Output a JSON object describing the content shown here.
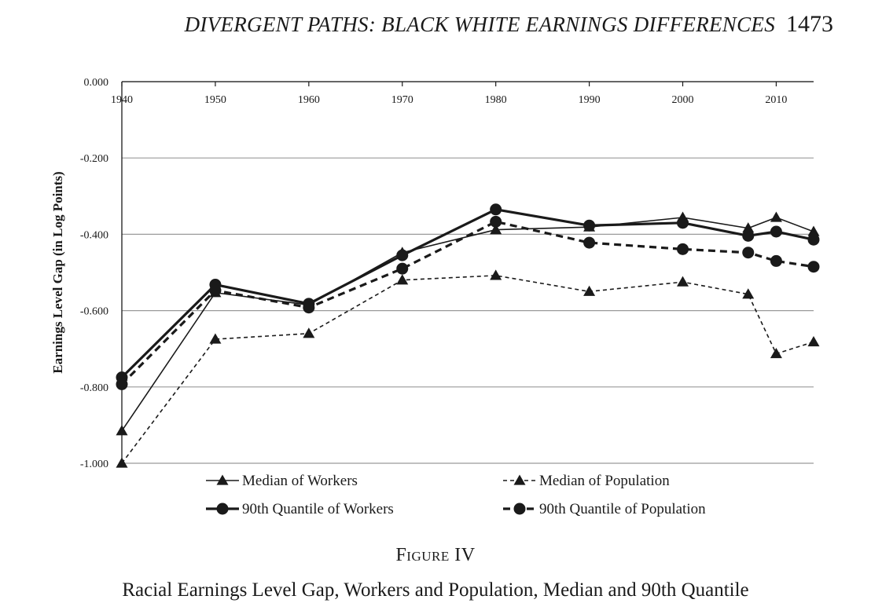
{
  "header": {
    "running_title": "DIVERGENT PATHS: BLACK WHITE EARNINGS DIFFERENCES",
    "page_number": "1473"
  },
  "figure": {
    "label": "Figure IV",
    "caption": "Racial Earnings Level Gap, Workers and Population, Median and 90th Quantile"
  },
  "colors": {
    "ink": "#1a1a1a",
    "grid": "#9a9a9a"
  },
  "chart_data": {
    "type": "line",
    "title": "",
    "xlabel": "",
    "ylabel": "Earnings Level Gap (in Log Points)",
    "x": [
      1940,
      1950,
      1960,
      1970,
      1980,
      1990,
      2000,
      2007,
      2010,
      2014
    ],
    "x_ticks": [
      "1940",
      "1950",
      "1960",
      "1970",
      "1980",
      "1990",
      "2000",
      "2010"
    ],
    "x_tick_values": [
      1940,
      1950,
      1960,
      1970,
      1980,
      1990,
      2000,
      2010
    ],
    "xlim": [
      1940,
      2014
    ],
    "ylim": [
      -1.0,
      0.0
    ],
    "y_ticks": [
      "0.000",
      "-0.200",
      "-0.400",
      "-0.600",
      "-0.800",
      "-1.000"
    ],
    "y_tick_values": [
      0.0,
      -0.2,
      -0.4,
      -0.6,
      -0.8,
      -1.0
    ],
    "grid": "horizontal",
    "x_axis_position": "top",
    "legend_position": "bottom",
    "series": [
      {
        "name": "Median of Workers",
        "marker": "triangle",
        "line": "solid",
        "weight": "thin",
        "values": [
          -0.915,
          -0.553,
          -0.585,
          -0.448,
          -0.388,
          -0.381,
          -0.356,
          -0.384,
          -0.356,
          -0.393
        ]
      },
      {
        "name": "Median of Population",
        "marker": "triangle",
        "line": "dashed",
        "weight": "thin",
        "values": [
          -1.0,
          -0.675,
          -0.66,
          -0.52,
          -0.508,
          -0.55,
          -0.525,
          -0.557,
          -0.713,
          -0.682
        ]
      },
      {
        "name": "90th Quantile of Workers",
        "marker": "circle",
        "line": "solid",
        "weight": "thick",
        "values": [
          -0.775,
          -0.532,
          -0.582,
          -0.455,
          -0.335,
          -0.377,
          -0.37,
          -0.404,
          -0.393,
          -0.414
        ]
      },
      {
        "name": "90th Quantile of Population",
        "marker": "circle",
        "line": "dashed",
        "weight": "thick",
        "values": [
          -0.793,
          -0.547,
          -0.592,
          -0.49,
          -0.367,
          -0.422,
          -0.439,
          -0.448,
          -0.47,
          -0.485
        ]
      }
    ]
  }
}
